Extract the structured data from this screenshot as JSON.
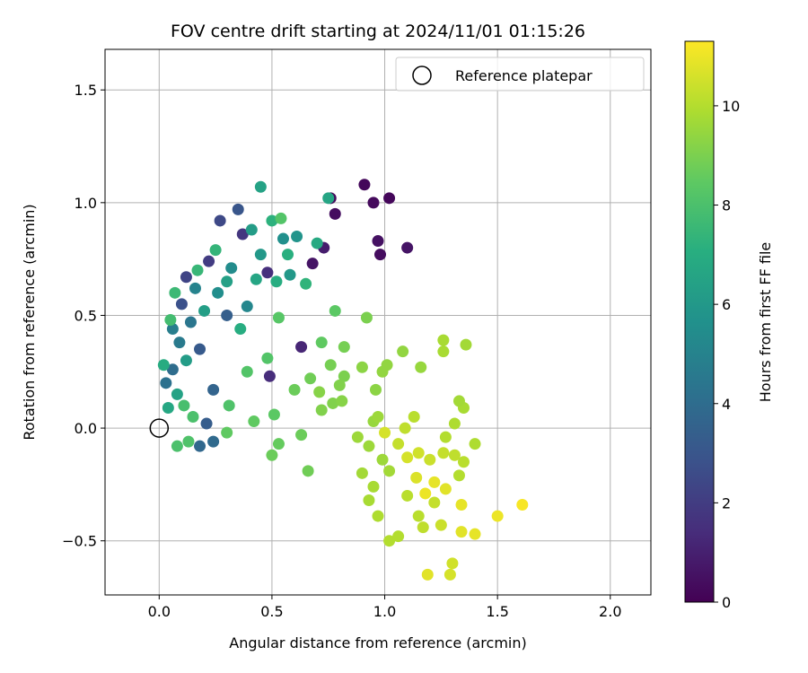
{
  "chart_data": {
    "type": "scatter",
    "title": "FOV centre drift starting at 2024/11/01 01:15:26",
    "xlabel": "Angular distance from reference (arcmin)",
    "ylabel": "Rotation from reference (arcmin)",
    "xlim": [
      -0.24,
      2.18
    ],
    "ylim": [
      -0.74,
      1.68
    ],
    "xticks": [
      0.0,
      0.5,
      1.0,
      1.5,
      2.0
    ],
    "xtick_labels": [
      "0.0",
      "0.5",
      "1.0",
      "1.5",
      "2.0"
    ],
    "yticks": [
      -0.5,
      0.0,
      0.5,
      1.0,
      1.5
    ],
    "ytick_labels": [
      "−0.5",
      "0.0",
      "0.5",
      "1.0",
      "1.5"
    ],
    "grid": true,
    "legend": {
      "placement": "top-right",
      "entries": [
        "Reference platepar"
      ]
    },
    "reference_point": {
      "x": 0.0,
      "y": 0.0,
      "label": "Reference platepar",
      "marker": "open-circle"
    },
    "colorbar": {
      "label": "Hours from first FF file",
      "colormap": "viridis",
      "range": [
        0,
        11.3
      ],
      "ticks": [
        0,
        2,
        4,
        6,
        8,
        10
      ],
      "tick_labels": [
        "0",
        "2",
        "4",
        "6",
        "8",
        "10"
      ]
    },
    "points": [
      {
        "x": 0.76,
        "y": 1.02,
        "hours": 0.3
      },
      {
        "x": 0.91,
        "y": 1.08,
        "hours": 0.2
      },
      {
        "x": 0.95,
        "y": 1.0,
        "hours": 0.3
      },
      {
        "x": 1.02,
        "y": 1.02,
        "hours": 0.2
      },
      {
        "x": 0.78,
        "y": 0.95,
        "hours": 0.4
      },
      {
        "x": 0.97,
        "y": 0.83,
        "hours": 0.5
      },
      {
        "x": 0.98,
        "y": 0.77,
        "hours": 0.4
      },
      {
        "x": 1.1,
        "y": 0.8,
        "hours": 0.6
      },
      {
        "x": 0.68,
        "y": 0.73,
        "hours": 0.6
      },
      {
        "x": 0.73,
        "y": 0.8,
        "hours": 0.9
      },
      {
        "x": 0.63,
        "y": 0.36,
        "hours": 1.2
      },
      {
        "x": 0.49,
        "y": 0.23,
        "hours": 1.4
      },
      {
        "x": 0.48,
        "y": 0.69,
        "hours": 1.5
      },
      {
        "x": 0.37,
        "y": 0.86,
        "hours": 1.8
      },
      {
        "x": 0.22,
        "y": 0.74,
        "hours": 2.0
      },
      {
        "x": 0.12,
        "y": 0.67,
        "hours": 2.3
      },
      {
        "x": 0.27,
        "y": 0.92,
        "hours": 2.5
      },
      {
        "x": 0.35,
        "y": 0.97,
        "hours": 3.0
      },
      {
        "x": 0.1,
        "y": 0.55,
        "hours": 2.8
      },
      {
        "x": 0.18,
        "y": 0.35,
        "hours": 3.2
      },
      {
        "x": 0.3,
        "y": 0.5,
        "hours": 3.4
      },
      {
        "x": 0.24,
        "y": 0.17,
        "hours": 3.6
      },
      {
        "x": 0.21,
        "y": 0.02,
        "hours": 3.3
      },
      {
        "x": 0.18,
        "y": -0.08,
        "hours": 3.8
      },
      {
        "x": 0.24,
        "y": -0.06,
        "hours": 3.9
      },
      {
        "x": 0.06,
        "y": 0.26,
        "hours": 4.0
      },
      {
        "x": 0.03,
        "y": 0.2,
        "hours": 4.2
      },
      {
        "x": 0.14,
        "y": 0.47,
        "hours": 4.4
      },
      {
        "x": 0.09,
        "y": 0.38,
        "hours": 4.6
      },
      {
        "x": 0.06,
        "y": 0.44,
        "hours": 4.8
      },
      {
        "x": 0.16,
        "y": 0.62,
        "hours": 5.0
      },
      {
        "x": 0.39,
        "y": 0.54,
        "hours": 5.2
      },
      {
        "x": 0.32,
        "y": 0.71,
        "hours": 5.4
      },
      {
        "x": 0.26,
        "y": 0.6,
        "hours": 5.5
      },
      {
        "x": 0.55,
        "y": 0.84,
        "hours": 5.6
      },
      {
        "x": 0.61,
        "y": 0.85,
        "hours": 5.8
      },
      {
        "x": 0.58,
        "y": 0.68,
        "hours": 6.0
      },
      {
        "x": 0.45,
        "y": 0.77,
        "hours": 6.0
      },
      {
        "x": 0.41,
        "y": 0.88,
        "hours": 6.2
      },
      {
        "x": 0.45,
        "y": 1.07,
        "hours": 6.5
      },
      {
        "x": 0.75,
        "y": 1.02,
        "hours": 6.6
      },
      {
        "x": 0.7,
        "y": 0.82,
        "hours": 6.8
      },
      {
        "x": 0.43,
        "y": 0.66,
        "hours": 6.6
      },
      {
        "x": 0.3,
        "y": 0.65,
        "hours": 6.4
      },
      {
        "x": 0.2,
        "y": 0.52,
        "hours": 6.3
      },
      {
        "x": 0.12,
        "y": 0.3,
        "hours": 6.2
      },
      {
        "x": 0.08,
        "y": 0.15,
        "hours": 6.5
      },
      {
        "x": 0.04,
        "y": 0.09,
        "hours": 6.7
      },
      {
        "x": 0.02,
        "y": 0.28,
        "hours": 6.9
      },
      {
        "x": 0.36,
        "y": 0.44,
        "hours": 7.0
      },
      {
        "x": 0.52,
        "y": 0.65,
        "hours": 7.0
      },
      {
        "x": 0.57,
        "y": 0.77,
        "hours": 7.1
      },
      {
        "x": 0.5,
        "y": 0.92,
        "hours": 7.2
      },
      {
        "x": 0.65,
        "y": 0.64,
        "hours": 7.3
      },
      {
        "x": 0.25,
        "y": 0.79,
        "hours": 7.4
      },
      {
        "x": 0.17,
        "y": 0.7,
        "hours": 7.5
      },
      {
        "x": 0.07,
        "y": 0.6,
        "hours": 7.6
      },
      {
        "x": 0.05,
        "y": 0.48,
        "hours": 7.8
      },
      {
        "x": 0.11,
        "y": 0.1,
        "hours": 7.9
      },
      {
        "x": 0.15,
        "y": 0.05,
        "hours": 8.0
      },
      {
        "x": 0.08,
        "y": -0.08,
        "hours": 8.0
      },
      {
        "x": 0.13,
        "y": -0.06,
        "hours": 8.1
      },
      {
        "x": 0.31,
        "y": 0.1,
        "hours": 8.1
      },
      {
        "x": 0.39,
        "y": 0.25,
        "hours": 8.2
      },
      {
        "x": 0.48,
        "y": 0.31,
        "hours": 8.2
      },
      {
        "x": 0.53,
        "y": 0.49,
        "hours": 8.3
      },
      {
        "x": 0.54,
        "y": 0.93,
        "hours": 8.2
      },
      {
        "x": 0.78,
        "y": 0.52,
        "hours": 8.4
      },
      {
        "x": 0.72,
        "y": 0.38,
        "hours": 8.5
      },
      {
        "x": 0.51,
        "y": 0.06,
        "hours": 8.4
      },
      {
        "x": 0.42,
        "y": 0.03,
        "hours": 8.5
      },
      {
        "x": 0.3,
        "y": -0.02,
        "hours": 8.5
      },
      {
        "x": 0.53,
        "y": -0.07,
        "hours": 8.6
      },
      {
        "x": 0.5,
        "y": -0.12,
        "hours": 8.7
      },
      {
        "x": 0.63,
        "y": -0.03,
        "hours": 8.7
      },
      {
        "x": 0.66,
        "y": -0.19,
        "hours": 8.8
      },
      {
        "x": 0.6,
        "y": 0.17,
        "hours": 8.7
      },
      {
        "x": 0.67,
        "y": 0.22,
        "hours": 8.8
      },
      {
        "x": 0.76,
        "y": 0.28,
        "hours": 8.9
      },
      {
        "x": 0.82,
        "y": 0.36,
        "hours": 8.9
      },
      {
        "x": 0.92,
        "y": 0.49,
        "hours": 9.0
      },
      {
        "x": 0.82,
        "y": 0.23,
        "hours": 9.0
      },
      {
        "x": 0.8,
        "y": 0.19,
        "hours": 9.1
      },
      {
        "x": 0.77,
        "y": 0.11,
        "hours": 9.1
      },
      {
        "x": 0.72,
        "y": 0.08,
        "hours": 9.1
      },
      {
        "x": 0.71,
        "y": 0.16,
        "hours": 9.2
      },
      {
        "x": 0.81,
        "y": 0.12,
        "hours": 9.2
      },
      {
        "x": 0.9,
        "y": 0.27,
        "hours": 9.3
      },
      {
        "x": 0.96,
        "y": 0.17,
        "hours": 9.3
      },
      {
        "x": 1.01,
        "y": 0.28,
        "hours": 9.4
      },
      {
        "x": 1.08,
        "y": 0.34,
        "hours": 9.4
      },
      {
        "x": 1.16,
        "y": 0.27,
        "hours": 9.5
      },
      {
        "x": 0.95,
        "y": 0.03,
        "hours": 9.5
      },
      {
        "x": 0.88,
        "y": -0.04,
        "hours": 9.6
      },
      {
        "x": 0.93,
        "y": -0.08,
        "hours": 9.6
      },
      {
        "x": 0.99,
        "y": -0.14,
        "hours": 9.6
      },
      {
        "x": 1.02,
        "y": -0.19,
        "hours": 9.7
      },
      {
        "x": 0.9,
        "y": -0.2,
        "hours": 9.7
      },
      {
        "x": 0.95,
        "y": -0.26,
        "hours": 9.8
      },
      {
        "x": 0.93,
        "y": -0.32,
        "hours": 9.8
      },
      {
        "x": 0.97,
        "y": -0.39,
        "hours": 9.9
      },
      {
        "x": 1.02,
        "y": -0.5,
        "hours": 10.0
      },
      {
        "x": 1.06,
        "y": -0.48,
        "hours": 10.0
      },
      {
        "x": 1.1,
        "y": -0.3,
        "hours": 10.1
      },
      {
        "x": 1.15,
        "y": -0.39,
        "hours": 10.1
      },
      {
        "x": 1.17,
        "y": -0.44,
        "hours": 10.2
      },
      {
        "x": 1.22,
        "y": -0.33,
        "hours": 10.3
      },
      {
        "x": 1.25,
        "y": -0.43,
        "hours": 10.4
      },
      {
        "x": 1.29,
        "y": -0.65,
        "hours": 10.6
      },
      {
        "x": 1.3,
        "y": -0.6,
        "hours": 10.5
      },
      {
        "x": 1.19,
        "y": -0.65,
        "hours": 10.8
      },
      {
        "x": 1.34,
        "y": -0.46,
        "hours": 10.8
      },
      {
        "x": 1.4,
        "y": -0.47,
        "hours": 10.9
      },
      {
        "x": 1.5,
        "y": -0.39,
        "hours": 11.0
      },
      {
        "x": 1.61,
        "y": -0.34,
        "hours": 11.2
      },
      {
        "x": 1.34,
        "y": -0.34,
        "hours": 10.9
      },
      {
        "x": 1.27,
        "y": -0.27,
        "hours": 10.8
      },
      {
        "x": 1.22,
        "y": -0.24,
        "hours": 10.9
      },
      {
        "x": 1.18,
        "y": -0.29,
        "hours": 11.0
      },
      {
        "x": 1.14,
        "y": -0.22,
        "hours": 10.7
      },
      {
        "x": 1.1,
        "y": -0.13,
        "hours": 10.6
      },
      {
        "x": 1.15,
        "y": -0.11,
        "hours": 10.5
      },
      {
        "x": 1.2,
        "y": -0.14,
        "hours": 10.4
      },
      {
        "x": 1.26,
        "y": -0.11,
        "hours": 10.3
      },
      {
        "x": 1.31,
        "y": -0.12,
        "hours": 10.2
      },
      {
        "x": 1.35,
        "y": -0.15,
        "hours": 10.1
      },
      {
        "x": 1.33,
        "y": -0.21,
        "hours": 10.0
      },
      {
        "x": 1.27,
        "y": -0.04,
        "hours": 10.0
      },
      {
        "x": 1.31,
        "y": 0.02,
        "hours": 9.9
      },
      {
        "x": 1.4,
        "y": -0.07,
        "hours": 9.9
      },
      {
        "x": 1.35,
        "y": 0.09,
        "hours": 9.8
      },
      {
        "x": 1.33,
        "y": 0.12,
        "hours": 9.7
      },
      {
        "x": 1.26,
        "y": 0.39,
        "hours": 9.8
      },
      {
        "x": 1.26,
        "y": 0.34,
        "hours": 9.8
      },
      {
        "x": 1.36,
        "y": 0.37,
        "hours": 9.7
      },
      {
        "x": 1.13,
        "y": 0.05,
        "hours": 10.1
      },
      {
        "x": 1.09,
        "y": 0.0,
        "hours": 10.2
      },
      {
        "x": 1.06,
        "y": -0.07,
        "hours": 10.3
      },
      {
        "x": 1.0,
        "y": -0.02,
        "hours": 10.6
      },
      {
        "x": 0.97,
        "y": 0.05,
        "hours": 9.6
      },
      {
        "x": 0.99,
        "y": 0.25,
        "hours": 9.4
      }
    ]
  }
}
